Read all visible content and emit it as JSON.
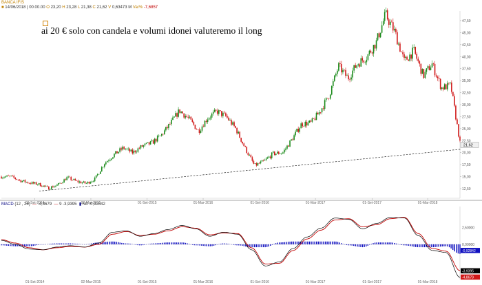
{
  "header": {
    "title": "BANCA IFIS",
    "date_time": "14/06/2018 | 00.00.00",
    "open_label": "O",
    "open": "23,20",
    "high_label": "H",
    "high": "23,28",
    "low_label": "L",
    "low": "21,38",
    "close_label": "C",
    "close": "21,62",
    "volume_label": "V",
    "volume": "0,63473 M",
    "var_label": "Var%",
    "var": "-7,6857"
  },
  "annotation": "ai 20 € solo con candela e volumi idonei valuteremo il long",
  "macd_header": {
    "label": "MACD",
    "params": "(12 , 26)",
    "macd_value": "-4,8679",
    "signal_label": "9",
    "signal_value": "-3,9395",
    "hist_label": "Nd",
    "hist_value": "-0,92842"
  },
  "chart_data": [
    {
      "type": "candlestick",
      "ylim": [
        10.5,
        49.5
      ],
      "y_ticks": [
        "12,50",
        "15,00",
        "17,50",
        "20,00",
        "22,50",
        "25,00",
        "27,50",
        "30,00",
        "32,50",
        "35,00",
        "37,50",
        "40,00",
        "42,50",
        "45,00",
        "47,50"
      ],
      "y_tick_values": [
        12.5,
        15,
        17.5,
        20,
        22.5,
        25,
        27.5,
        30,
        32.5,
        35,
        37.5,
        40,
        42.5,
        45,
        47.5
      ],
      "x_ticks": [
        "01-Set-2014",
        "02-Mar-2015",
        "01-Set-2015",
        "01-Mar-2016",
        "01-Set-2016",
        "01-Mar-2017",
        "01-Set-2017",
        "01-Mar-2018"
      ],
      "last_price_label": "21,62",
      "last_price": 21.62,
      "close_path": [
        [
          "2014-06",
          15.0
        ],
        [
          "2014-07",
          14.2
        ],
        [
          "2014-08",
          13.7
        ],
        [
          "2014-09",
          13.4
        ],
        [
          "2014-10",
          12.6
        ],
        [
          "2014-11",
          13.3
        ],
        [
          "2014-12",
          14.8
        ],
        [
          "2015-01",
          14.0
        ],
        [
          "2015-02",
          13.6
        ],
        [
          "2015-03",
          14.5
        ],
        [
          "2015-04",
          17.8
        ],
        [
          "2015-05",
          19.5
        ],
        [
          "2015-06",
          21.0
        ],
        [
          "2015-07",
          20.0
        ],
        [
          "2015-08",
          21.3
        ],
        [
          "2015-09",
          22.0
        ],
        [
          "2015-10",
          23.5
        ],
        [
          "2015-11",
          26.0
        ],
        [
          "2015-12",
          28.8
        ],
        [
          "2016-01",
          27.0
        ],
        [
          "2016-02",
          24.5
        ],
        [
          "2016-03",
          27.2
        ],
        [
          "2016-04",
          28.6
        ],
        [
          "2016-05",
          27.5
        ],
        [
          "2016-06",
          25.0
        ],
        [
          "2016-07",
          21.0
        ],
        [
          "2016-08",
          17.3
        ],
        [
          "2016-09",
          18.2
        ],
        [
          "2016-10",
          19.8
        ],
        [
          "2016-11",
          20.0
        ],
        [
          "2016-12",
          22.8
        ],
        [
          "2017-01",
          26.0
        ],
        [
          "2017-02",
          26.2
        ],
        [
          "2017-03",
          28.5
        ],
        [
          "2017-04",
          32.0
        ],
        [
          "2017-05",
          38.0
        ],
        [
          "2017-06",
          35.5
        ],
        [
          "2017-07",
          38.5
        ],
        [
          "2017-08",
          40.0
        ],
        [
          "2017-09",
          43.0
        ],
        [
          "2017-10",
          48.8
        ],
        [
          "2017-11",
          45.0
        ],
        [
          "2017-12",
          39.0
        ],
        [
          "2018-01",
          41.2
        ],
        [
          "2018-02",
          36.0
        ],
        [
          "2018-03",
          38.5
        ],
        [
          "2018-04",
          33.5
        ],
        [
          "2018-05",
          34.0
        ],
        [
          "2018-06",
          21.62
        ]
      ],
      "trendline": [
        [
          "2014-09",
          12.0
        ],
        [
          "2018-06",
          20.7
        ]
      ]
    },
    {
      "type": "line",
      "name": "MACD",
      "ylim": [
        -5.2,
        5.6
      ],
      "y_ticks": [
        "2,50000",
        "0,00000"
      ],
      "y_tick_values": [
        2.5,
        0
      ],
      "x_ticks": [
        "01-Set-2014",
        "02-Mar-2015",
        "01-Set-2015",
        "01-Mar-2016",
        "01-Set-2016",
        "01-Mar-2017",
        "01-Set-2017",
        "01-Mar-2018"
      ],
      "series": [
        {
          "values": [
            0.6,
            0.0,
            -0.7,
            -0.8,
            -0.4,
            -0.2,
            -0.4,
            0.2,
            1.8,
            2.0,
            1.2,
            1.6,
            2.2,
            2.8,
            2.3,
            1.2,
            1.8,
            1.5,
            -0.8,
            -3.2,
            -2.6,
            -0.6,
            1.1,
            2.4,
            3.9,
            3.7,
            2.3,
            3.1,
            4.0,
            3.9,
            1.3,
            -0.9,
            -1.2,
            -4.9
          ]
        },
        {
          "values": [
            0.7,
            0.2,
            -0.5,
            -0.8,
            -0.5,
            -0.3,
            -0.4,
            0.0,
            1.5,
            1.9,
            1.3,
            1.5,
            2.0,
            2.6,
            2.4,
            1.4,
            1.7,
            1.6,
            -0.5,
            -2.9,
            -2.8,
            -0.9,
            0.8,
            2.1,
            3.6,
            3.8,
            2.6,
            2.9,
            3.8,
            4.0,
            1.6,
            -0.6,
            -1.0,
            -3.9
          ]
        }
      ],
      "colors": {
        "macd": "#000000",
        "signal": "#c00000",
        "histogram": "#1010c0"
      },
      "value_labels": [
        "-0,92842",
        "-3,9395",
        "-4,8679"
      ],
      "value_label_values": [
        -0.92842,
        -3.9395,
        -4.8679
      ]
    }
  ]
}
